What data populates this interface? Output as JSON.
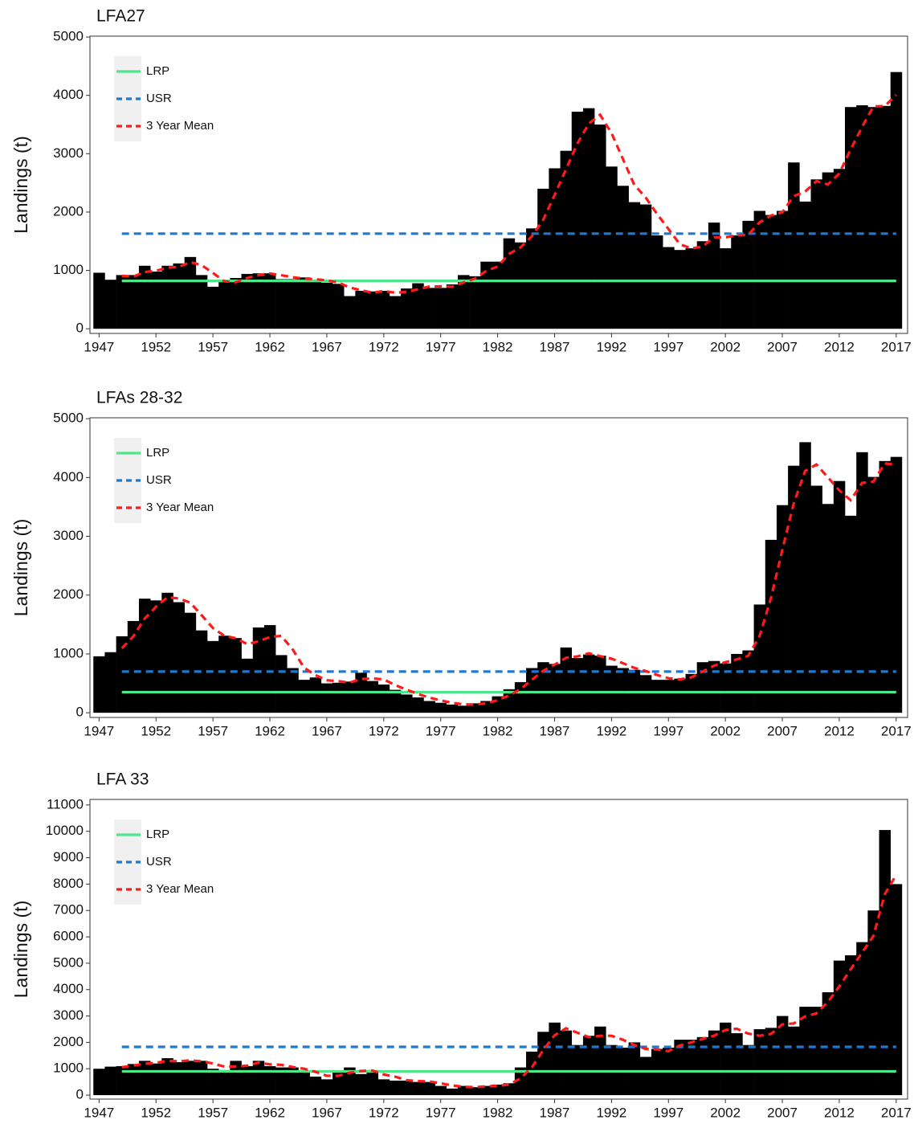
{
  "chart_data": [
    {
      "type": "bar",
      "title": "LFA27",
      "ylabel": "Landings (t)",
      "color": "#000000",
      "legend": "upper left",
      "xlim": [
        1946.2,
        2018
      ],
      "xticks": [
        1947,
        1952,
        1957,
        1962,
        1967,
        1972,
        1977,
        1982,
        1987,
        1992,
        1997,
        2002,
        2007,
        2012,
        2017
      ],
      "ylim": [
        -80,
        5015
      ],
      "yticks": [
        0,
        1000,
        2000,
        3000,
        4000,
        5000
      ],
      "x": [
        1947,
        1948,
        1949,
        1950,
        1951,
        1952,
        1953,
        1954,
        1955,
        1956,
        1957,
        1958,
        1959,
        1960,
        1961,
        1962,
        1963,
        1964,
        1965,
        1966,
        1967,
        1968,
        1969,
        1970,
        1971,
        1972,
        1973,
        1974,
        1975,
        1976,
        1977,
        1978,
        1979,
        1980,
        1981,
        1982,
        1983,
        1984,
        1985,
        1986,
        1987,
        1988,
        1989,
        1990,
        1991,
        1992,
        1993,
        1994,
        1995,
        1996,
        1997,
        1998,
        1999,
        2000,
        2001,
        2002,
        2003,
        2004,
        2005,
        2006,
        2007,
        2008,
        2009,
        2010,
        2011,
        2012,
        2013,
        2014,
        2015,
        2016,
        2017
      ],
      "values": [
        960,
        840,
        920,
        920,
        1080,
        980,
        1080,
        1120,
        1230,
        920,
        720,
        800,
        870,
        940,
        950,
        950,
        850,
        850,
        880,
        820,
        790,
        770,
        560,
        650,
        640,
        650,
        560,
        690,
        780,
        700,
        700,
        760,
        920,
        900,
        1150,
        1150,
        1550,
        1480,
        1720,
        2400,
        2750,
        3050,
        3720,
        3780,
        3500,
        2780,
        2450,
        2170,
        2130,
        1600,
        1400,
        1350,
        1380,
        1500,
        1820,
        1380,
        1600,
        1850,
        2020,
        1950,
        2020,
        2850,
        2180,
        2560,
        2680,
        2740,
        3800,
        3830,
        3800,
        3820,
        4400
      ],
      "lines": [
        {
          "name": "LRP",
          "color": "#4ee68a",
          "dash": "solid",
          "x": [
            1949,
            2017
          ],
          "values": [
            820,
            820
          ]
        },
        {
          "name": "USR",
          "color": "#1f78d1",
          "dash": "dashed",
          "x": [
            1949,
            2017
          ],
          "values": [
            1630,
            1630
          ]
        },
        {
          "name": "3 Year Mean",
          "color": "#ff1a1a",
          "dash": "dashed",
          "values": [
            null,
            null,
            907,
            893,
            973,
            993,
            1047,
            1060,
            1143,
            1090,
            957,
            813,
            797,
            870,
            920,
            947,
            917,
            883,
            860,
            850,
            830,
            793,
            707,
            660,
            617,
            647,
            617,
            633,
            677,
            723,
            727,
            720,
            793,
            860,
            990,
            1067,
            1283,
            1393,
            1583,
            1867,
            2290,
            2733,
            3173,
            3517,
            3667,
            3353,
            2910,
            2467,
            2250,
            1967,
            1710,
            1450,
            1377,
            1410,
            1567,
            1567,
            1600,
            1610,
            1823,
            1940,
            1997,
            2273,
            2350,
            2530,
            2473,
            2660,
            3073,
            3457,
            3810,
            3817,
            4007
          ]
        }
      ]
    },
    {
      "type": "bar",
      "title": "LFAs 28-32",
      "ylabel": "Landings (t)",
      "color": "#000000",
      "legend": "upper left",
      "xlim": [
        1946.2,
        2018
      ],
      "xticks": [
        1947,
        1952,
        1957,
        1962,
        1967,
        1972,
        1977,
        1982,
        1987,
        1992,
        1997,
        2002,
        2007,
        2012,
        2017
      ],
      "ylim": [
        -80,
        5015
      ],
      "yticks": [
        0,
        1000,
        2000,
        3000,
        4000,
        5000
      ],
      "x": [
        1947,
        1948,
        1949,
        1950,
        1951,
        1952,
        1953,
        1954,
        1955,
        1956,
        1957,
        1958,
        1959,
        1960,
        1961,
        1962,
        1963,
        1964,
        1965,
        1966,
        1967,
        1968,
        1969,
        1970,
        1971,
        1972,
        1973,
        1974,
        1975,
        1976,
        1977,
        1978,
        1979,
        1980,
        1981,
        1982,
        1983,
        1984,
        1985,
        1986,
        1987,
        1988,
        1989,
        1990,
        1991,
        1992,
        1993,
        1994,
        1995,
        1996,
        1997,
        1998,
        1999,
        2000,
        2001,
        2002,
        2003,
        2004,
        2005,
        2006,
        2007,
        2008,
        2009,
        2010,
        2011,
        2012,
        2013,
        2014,
        2015,
        2016,
        2017
      ],
      "values": [
        960,
        1030,
        1300,
        1560,
        1940,
        1910,
        2040,
        1880,
        1700,
        1400,
        1220,
        1310,
        1270,
        920,
        1450,
        1490,
        980,
        760,
        560,
        600,
        500,
        510,
        530,
        680,
        540,
        480,
        390,
        310,
        260,
        200,
        170,
        140,
        120,
        160,
        200,
        280,
        400,
        520,
        760,
        860,
        830,
        1110,
        930,
        990,
        970,
        800,
        760,
        730,
        640,
        560,
        560,
        580,
        660,
        860,
        880,
        840,
        1000,
        1060,
        1840,
        2940,
        3530,
        4200,
        4600,
        3860,
        3550,
        3940,
        3350,
        4430,
        4010,
        4280,
        4350
      ],
      "lines": [
        {
          "name": "LRP",
          "color": "#4ee68a",
          "dash": "solid",
          "x": [
            1949,
            2017
          ],
          "values": [
            350,
            350
          ]
        },
        {
          "name": "USR",
          "color": "#1f78d1",
          "dash": "dashed",
          "x": [
            1949,
            2017
          ],
          "values": [
            700,
            700
          ]
        },
        {
          "name": "3 Year Mean",
          "color": "#ff1a1a",
          "dash": "dashed",
          "values": [
            null,
            null,
            1097,
            1297,
            1600,
            1803,
            1963,
            1943,
            1873,
            1660,
            1440,
            1310,
            1267,
            1167,
            1213,
            1287,
            1307,
            1077,
            767,
            640,
            553,
            537,
            513,
            573,
            583,
            567,
            470,
            393,
            320,
            257,
            210,
            170,
            143,
            140,
            160,
            213,
            293,
            400,
            560,
            713,
            817,
            933,
            957,
            1010,
            963,
            920,
            843,
            763,
            710,
            643,
            587,
            567,
            600,
            700,
            800,
            860,
            907,
            967,
            1300,
            1947,
            2770,
            3557,
            4110,
            4220,
            4003,
            3783,
            3613,
            3907,
            3930,
            4240,
            4213
          ]
        }
      ]
    },
    {
      "type": "bar",
      "title": "LFA 33",
      "ylabel": "Landings (t)",
      "color": "#000000",
      "legend": "upper left",
      "xlim": [
        1946.2,
        2018
      ],
      "xticks": [
        1947,
        1952,
        1957,
        1962,
        1967,
        1972,
        1977,
        1982,
        1987,
        1992,
        1997,
        2002,
        2007,
        2012,
        2017
      ],
      "ylim": [
        -150,
        11210
      ],
      "yticks": [
        0,
        1000,
        2000,
        3000,
        4000,
        5000,
        6000,
        7000,
        8000,
        9000,
        10000,
        11000
      ],
      "x": [
        1947,
        1948,
        1949,
        1950,
        1951,
        1952,
        1953,
        1954,
        1955,
        1956,
        1957,
        1958,
        1959,
        1960,
        1961,
        1962,
        1963,
        1964,
        1965,
        1966,
        1967,
        1968,
        1969,
        1970,
        1971,
        1972,
        1973,
        1974,
        1975,
        1976,
        1977,
        1978,
        1979,
        1980,
        1981,
        1982,
        1983,
        1984,
        1985,
        1986,
        1987,
        1988,
        1989,
        1990,
        1991,
        1992,
        1993,
        1994,
        1995,
        1996,
        1997,
        1998,
        1999,
        2000,
        2001,
        2002,
        2003,
        2004,
        2005,
        2006,
        2007,
        2008,
        2009,
        2010,
        2011,
        2012,
        2013,
        2014,
        2015,
        2016,
        2017
      ],
      "values": [
        1000,
        1080,
        1100,
        1180,
        1300,
        1200,
        1400,
        1250,
        1300,
        1300,
        1000,
        950,
        1300,
        1100,
        1300,
        1100,
        1050,
        1050,
        900,
        700,
        600,
        900,
        1050,
        800,
        950,
        600,
        550,
        550,
        500,
        500,
        350,
        250,
        350,
        300,
        350,
        400,
        450,
        1050,
        1650,
        2400,
        2750,
        2450,
        1900,
        2250,
        2600,
        1900,
        1800,
        2000,
        1450,
        1750,
        1800,
        2100,
        2100,
        2200,
        2450,
        2750,
        2350,
        1900,
        2500,
        2550,
        3000,
        2600,
        3350,
        3350,
        3900,
        5100,
        5300,
        5800,
        7000,
        10050,
        8000
      ],
      "lines": [
        {
          "name": "LRP",
          "color": "#4ee68a",
          "dash": "solid",
          "x": [
            1949,
            2017
          ],
          "values": [
            900,
            900
          ]
        },
        {
          "name": "USR",
          "color": "#1f78d1",
          "dash": "dashed",
          "x": [
            1949,
            2017
          ],
          "values": [
            1830,
            1830
          ]
        },
        {
          "name": "3 Year Mean",
          "color": "#ff1a1a",
          "dash": "dashed",
          "values": [
            null,
            null,
            1060,
            1120,
            1193,
            1227,
            1300,
            1283,
            1317,
            1283,
            1200,
            1083,
            1083,
            1117,
            1233,
            1167,
            1150,
            1067,
            1000,
            883,
            733,
            733,
            850,
            917,
            933,
            783,
            700,
            567,
            533,
            517,
            450,
            367,
            317,
            300,
            333,
            350,
            400,
            633,
            1050,
            1700,
            2267,
            2533,
            2367,
            2200,
            2250,
            2250,
            2100,
            1900,
            1750,
            1733,
            1667,
            1883,
            2000,
            2133,
            2250,
            2467,
            2517,
            2333,
            2250,
            2317,
            2683,
            2717,
            2983,
            3100,
            3533,
            4117,
            4767,
            5400,
            6033,
            7617,
            8350
          ]
        }
      ]
    }
  ]
}
